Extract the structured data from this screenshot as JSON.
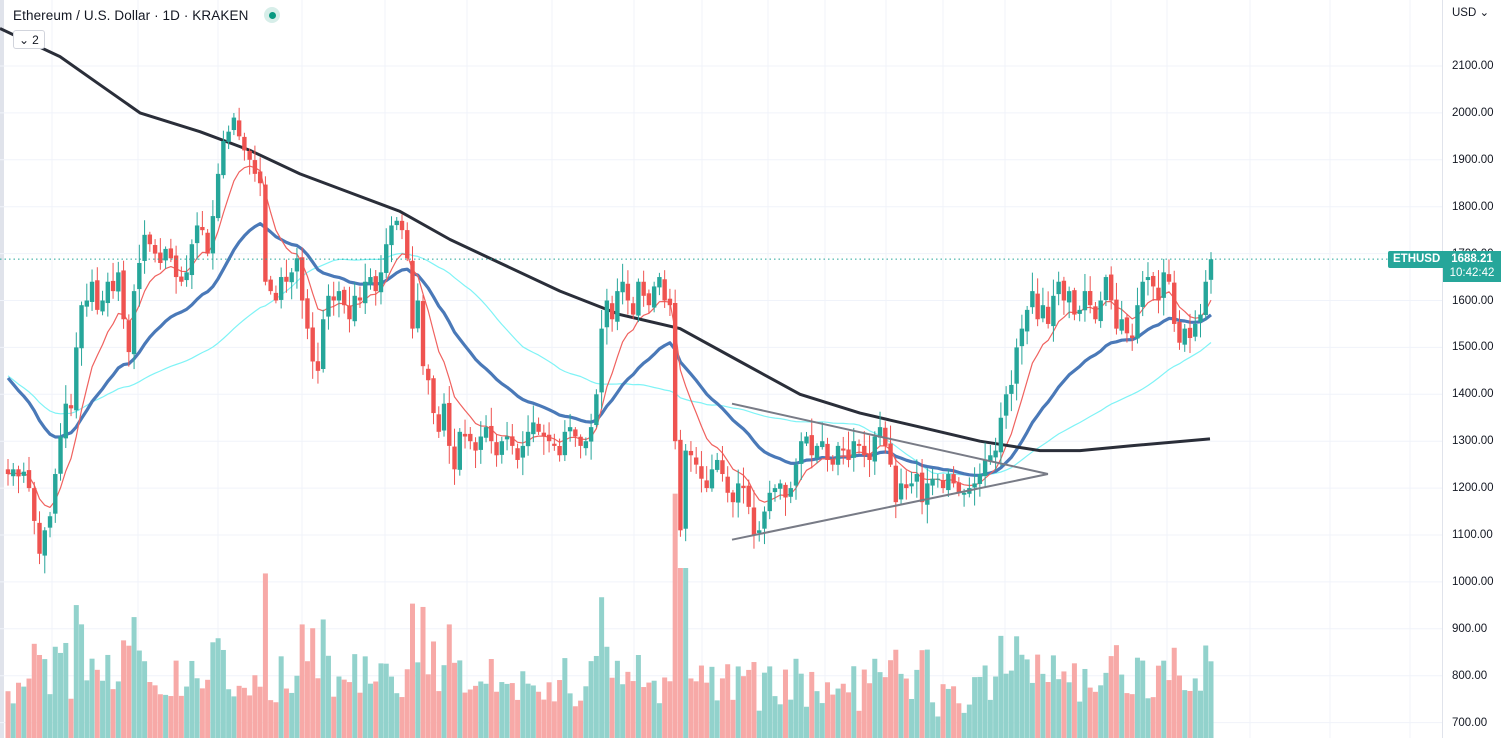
{
  "legend": {
    "title": "Ethereum / U.S. Dollar · 1D · KRAKEN",
    "collapse_count": "2"
  },
  "axis": {
    "currency": "USD",
    "ticks": [
      "2100.00",
      "2000.00",
      "1900.00",
      "1800.00",
      "1700.00",
      "1600.00",
      "1500.00",
      "1400.00",
      "1300.00",
      "1200.00",
      "1100.00",
      "1000.00",
      "900.00",
      "800.00",
      "700.00"
    ]
  },
  "last_price": {
    "symbol": "ETHUSD",
    "price": "1688.21",
    "countdown": "10:42:42"
  },
  "colors": {
    "up": "#26a69a",
    "down": "#ef5350",
    "volume_up": "#92d2cc",
    "volume_down": "#f7a9a7",
    "ma_short": "#f0625f",
    "ma_mid": "#4a79b8",
    "ma_long_cyan": "#7ff3f6",
    "ma_200": "#2a2e39",
    "triangle": "#787b86",
    "grid": "#f0f3fa",
    "price_line": "#26a69a"
  },
  "chart_data": {
    "type": "candlestick",
    "title": "Ethereum / U.S. Dollar · 1D · KRAKEN",
    "ylabel": "USD",
    "ylim": [
      700,
      2150
    ],
    "grid": true,
    "last_price": 1688.21,
    "closes": [
      1230,
      1240,
      1225,
      1235,
      1200,
      1130,
      1060,
      1110,
      1140,
      1230,
      1310,
      1380,
      1370,
      1500,
      1590,
      1600,
      1640,
      1580,
      1600,
      1640,
      1620,
      1660,
      1560,
      1490,
      1620,
      1680,
      1740,
      1720,
      1700,
      1680,
      1710,
      1690,
      1650,
      1640,
      1660,
      1720,
      1760,
      1750,
      1700,
      1780,
      1870,
      1940,
      1960,
      1990,
      1950,
      1920,
      1900,
      1870,
      1850,
      1640,
      1620,
      1600,
      1650,
      1640,
      1660,
      1690,
      1600,
      1540,
      1470,
      1450,
      1560,
      1610,
      1600,
      1620,
      1590,
      1560,
      1610,
      1600,
      1640,
      1650,
      1620,
      1660,
      1720,
      1760,
      1770,
      1750,
      1690,
      1540,
      1600,
      1460,
      1430,
      1360,
      1320,
      1380,
      1290,
      1240,
      1320,
      1310,
      1300,
      1280,
      1310,
      1330,
      1300,
      1270,
      1300,
      1310,
      1290,
      1260,
      1290,
      1320,
      1340,
      1320,
      1310,
      1300,
      1290,
      1270,
      1320,
      1330,
      1310,
      1290,
      1300,
      1330,
      1400,
      1540,
      1600,
      1560,
      1620,
      1640,
      1600,
      1570,
      1640,
      1610,
      1590,
      1630,
      1650,
      1600,
      1590,
      1300,
      1110,
      1280,
      1270,
      1250,
      1220,
      1200,
      1240,
      1260,
      1230,
      1190,
      1170,
      1210,
      1200,
      1160,
      1100,
      1110,
      1150,
      1190,
      1200,
      1210,
      1180,
      1200,
      1250,
      1300,
      1310,
      1270,
      1290,
      1300,
      1260,
      1250,
      1290,
      1280,
      1260,
      1300,
      1290,
      1270,
      1260,
      1310,
      1330,
      1290,
      1250,
      1170,
      1210,
      1200,
      1210,
      1230,
      1170,
      1210,
      1220,
      1220,
      1200,
      1230,
      1210,
      1190,
      1190,
      1200,
      1210,
      1230,
      1260,
      1270,
      1280,
      1350,
      1400,
      1420,
      1500,
      1540,
      1580,
      1620,
      1560,
      1590,
      1550,
      1610,
      1640,
      1600,
      1620,
      1570,
      1580,
      1620,
      1590,
      1560,
      1600,
      1650,
      1600,
      1540,
      1560,
      1530,
      1520,
      1590,
      1640,
      1650,
      1630,
      1600,
      1660,
      1640,
      1550,
      1510,
      1540,
      1520,
      1550,
      1570,
      1640,
      1688
    ],
    "ma_short": {
      "label": "EMA short (red)",
      "approx": true
    },
    "ma_mid": {
      "label": "EMA mid (blue)",
      "approx": true
    },
    "ma_cyan": {
      "label": "MA (cyan)",
      "approx": true
    },
    "ma_200": {
      "label": "MA 200 (dark)",
      "points": [
        [
          0,
          2180
        ],
        [
          60,
          2120
        ],
        [
          100,
          2060
        ],
        [
          140,
          2000
        ],
        [
          200,
          1960
        ],
        [
          250,
          1920
        ],
        [
          300,
          1870
        ],
        [
          350,
          1830
        ],
        [
          400,
          1790
        ],
        [
          450,
          1730
        ],
        [
          500,
          1680
        ],
        [
          560,
          1620
        ],
        [
          620,
          1570
        ],
        [
          680,
          1540
        ],
        [
          740,
          1470
        ],
        [
          800,
          1400
        ],
        [
          860,
          1360
        ],
        [
          920,
          1330
        ],
        [
          980,
          1300
        ],
        [
          1040,
          1280
        ],
        [
          1080,
          1280
        ],
        [
          1130,
          1290
        ],
        [
          1210,
          1305
        ]
      ]
    },
    "annotations": [
      {
        "type": "trendline",
        "from": [
          732,
          1380
        ],
        "to": [
          1048,
          1230
        ],
        "label": "triangle upper"
      },
      {
        "type": "trendline",
        "from": [
          732,
          1090
        ],
        "to": [
          1048,
          1230
        ],
        "label": "triangle lower"
      }
    ],
    "volume_note": "Volume histogram along bottom, colored by candle direction"
  }
}
